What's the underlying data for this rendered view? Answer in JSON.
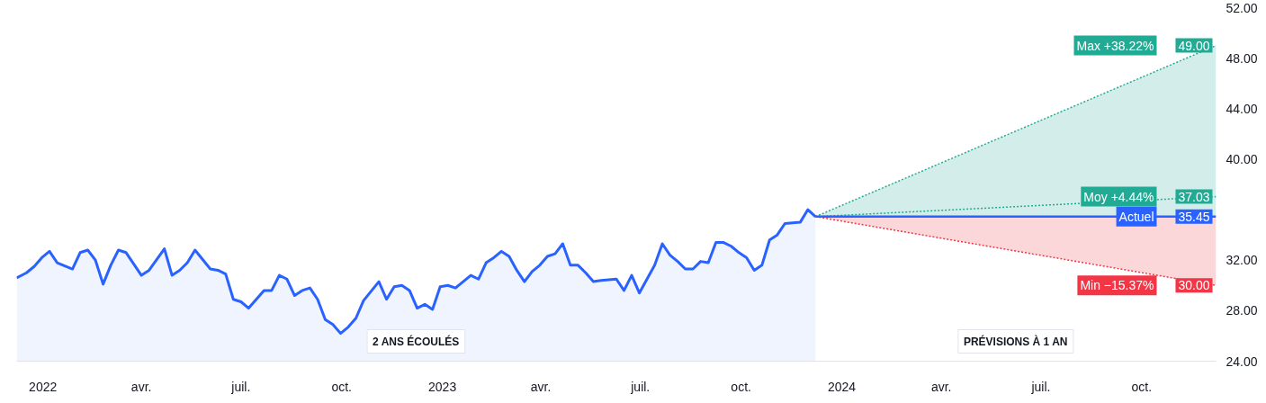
{
  "chart_data": {
    "type": "area",
    "xlim": [
      "2021-12-08",
      "2024-12-08"
    ],
    "ylim": [
      24,
      52
    ],
    "yticks": [
      {
        "value": 24,
        "label": "24.00"
      },
      {
        "value": 28,
        "label": "28.00"
      },
      {
        "value": 32,
        "label": "32.00"
      },
      {
        "value": 40,
        "label": "40.00"
      },
      {
        "value": 44,
        "label": "44.00"
      },
      {
        "value": 48,
        "label": "48.00"
      },
      {
        "value": 52,
        "label": "52.00"
      }
    ],
    "xticks": [
      {
        "value": "2022-01-01",
        "label": "2022"
      },
      {
        "value": "2022-04-01",
        "label": "avr."
      },
      {
        "value": "2022-07-01",
        "label": "juil."
      },
      {
        "value": "2022-10-01",
        "label": "oct."
      },
      {
        "value": "2023-01-01",
        "label": "2023"
      },
      {
        "value": "2023-04-01",
        "label": "avr."
      },
      {
        "value": "2023-07-01",
        "label": "juil."
      },
      {
        "value": "2023-10-01",
        "label": "oct."
      },
      {
        "value": "2024-01-01",
        "label": "2024"
      },
      {
        "value": "2024-04-01",
        "label": "avr."
      },
      {
        "value": "2024-07-01",
        "label": "juil."
      },
      {
        "value": "2024-10-01",
        "label": "oct."
      }
    ],
    "grid": false,
    "legend": "right",
    "annotations": [
      "2 ANS ÉCOULÉS",
      "PRÉVISIONS À 1 AN"
    ],
    "series": [
      {
        "color": "#2962ff",
        "x": [
          "2021-12-08",
          "2021-12-17",
          "2021-12-24",
          "2021-12-31",
          "2022-01-07",
          "2022-01-14",
          "2022-01-28",
          "2022-02-04",
          "2022-02-11",
          "2022-02-18",
          "2022-02-25",
          "2022-03-04",
          "2022-03-11",
          "2022-03-18",
          "2022-04-01",
          "2022-04-08",
          "2022-04-22",
          "2022-04-29",
          "2022-05-06",
          "2022-05-13",
          "2022-05-20",
          "2022-06-03",
          "2022-06-10",
          "2022-06-17",
          "2022-06-24",
          "2022-07-01",
          "2022-07-08",
          "2022-07-22",
          "2022-07-29",
          "2022-08-05",
          "2022-08-12",
          "2022-08-19",
          "2022-08-26",
          "2022-09-02",
          "2022-09-09",
          "2022-09-16",
          "2022-09-23",
          "2022-09-30",
          "2022-10-07",
          "2022-10-14",
          "2022-10-21",
          "2022-11-04",
          "2022-11-11",
          "2022-11-18",
          "2022-11-25",
          "2022-12-02",
          "2022-12-09",
          "2022-12-16",
          "2022-12-23",
          "2022-12-30",
          "2023-01-06",
          "2023-01-13",
          "2023-01-20",
          "2023-01-27",
          "2023-02-03",
          "2023-02-10",
          "2023-02-17",
          "2023-02-24",
          "2023-03-03",
          "2023-03-10",
          "2023-03-17",
          "2023-03-24",
          "2023-03-31",
          "2023-04-07",
          "2023-04-14",
          "2023-04-21",
          "2023-04-28",
          "2023-05-05",
          "2023-05-12",
          "2023-05-19",
          "2023-05-26",
          "2023-06-09",
          "2023-06-16",
          "2023-06-23",
          "2023-06-30",
          "2023-07-14",
          "2023-07-21",
          "2023-07-28",
          "2023-08-04",
          "2023-08-11",
          "2023-08-18",
          "2023-08-25",
          "2023-09-01",
          "2023-09-08",
          "2023-09-15",
          "2023-09-22",
          "2023-09-29",
          "2023-10-06",
          "2023-10-13",
          "2023-10-20",
          "2023-10-27",
          "2023-11-03",
          "2023-11-10",
          "2023-11-24",
          "2023-12-01",
          "2023-12-08"
        ],
        "values": [
          30.6,
          31.0,
          31.5,
          32.2,
          32.7,
          31.8,
          31.3,
          32.6,
          32.8,
          32.0,
          30.1,
          31.6,
          32.8,
          32.6,
          30.8,
          31.2,
          32.9,
          30.8,
          31.2,
          31.8,
          32.8,
          31.3,
          31.2,
          30.9,
          28.9,
          28.7,
          28.2,
          29.6,
          29.6,
          30.8,
          30.5,
          29.2,
          29.6,
          29.8,
          28.9,
          27.3,
          26.9,
          26.2,
          26.7,
          27.4,
          28.8,
          30.3,
          28.9,
          29.9,
          30.0,
          29.6,
          28.2,
          28.5,
          28.1,
          29.9,
          30.0,
          29.8,
          30.3,
          30.8,
          30.5,
          31.8,
          32.2,
          32.7,
          32.3,
          31.2,
          30.3,
          31.1,
          31.6,
          32.3,
          32.5,
          33.3,
          31.6,
          31.6,
          31.0,
          30.3,
          30.4,
          30.5,
          29.6,
          30.8,
          29.4,
          31.6,
          33.3,
          32.4,
          31.9,
          31.3,
          31.3,
          31.9,
          31.8,
          33.4,
          33.4,
          33.1,
          32.6,
          32.2,
          31.2,
          31.6,
          33.6,
          34.0,
          34.9,
          35.0,
          36.0,
          35.45
        ]
      },
      {
        "type": "line",
        "name": "Max +38.22%",
        "color": "#22ab94",
        "line_style": "dotted",
        "x": [
          "2023-12-08",
          "2024-12-08"
        ],
        "values": [
          35.45,
          49
        ],
        "lower": [
          35.45,
          35.45
        ],
        "upper": [
          35.45,
          49
        ],
        "value_labels": [
          null,
          "49.00"
        ]
      },
      {
        "type": "line",
        "name": "Moy +4.44%",
        "color": "#22ab94",
        "line_style": "dotted",
        "x": [
          "2023-12-08",
          "2024-12-08"
        ],
        "values": [
          35.45,
          37.03
        ],
        "value_labels": [
          null,
          "37.03"
        ]
      },
      {
        "type": "line",
        "name": "Min −15.37%",
        "color": "#f23645",
        "line_style": "dotted",
        "x": [
          "2023-12-08",
          "2024-12-08"
        ],
        "values": [
          35.45,
          30
        ],
        "lower": [
          35.45,
          30
        ],
        "upper": [
          35.45,
          35.45
        ],
        "value_labels": [
          null,
          "30.00"
        ]
      },
      {
        "type": "line",
        "name": "Actuel",
        "color": "#2962ff",
        "line_style": "solid",
        "x": [
          "2023-12-08",
          "2024-12-08"
        ],
        "values": [
          35.45,
          35.45
        ],
        "value_labels": [
          null,
          "35.45"
        ]
      }
    ]
  }
}
